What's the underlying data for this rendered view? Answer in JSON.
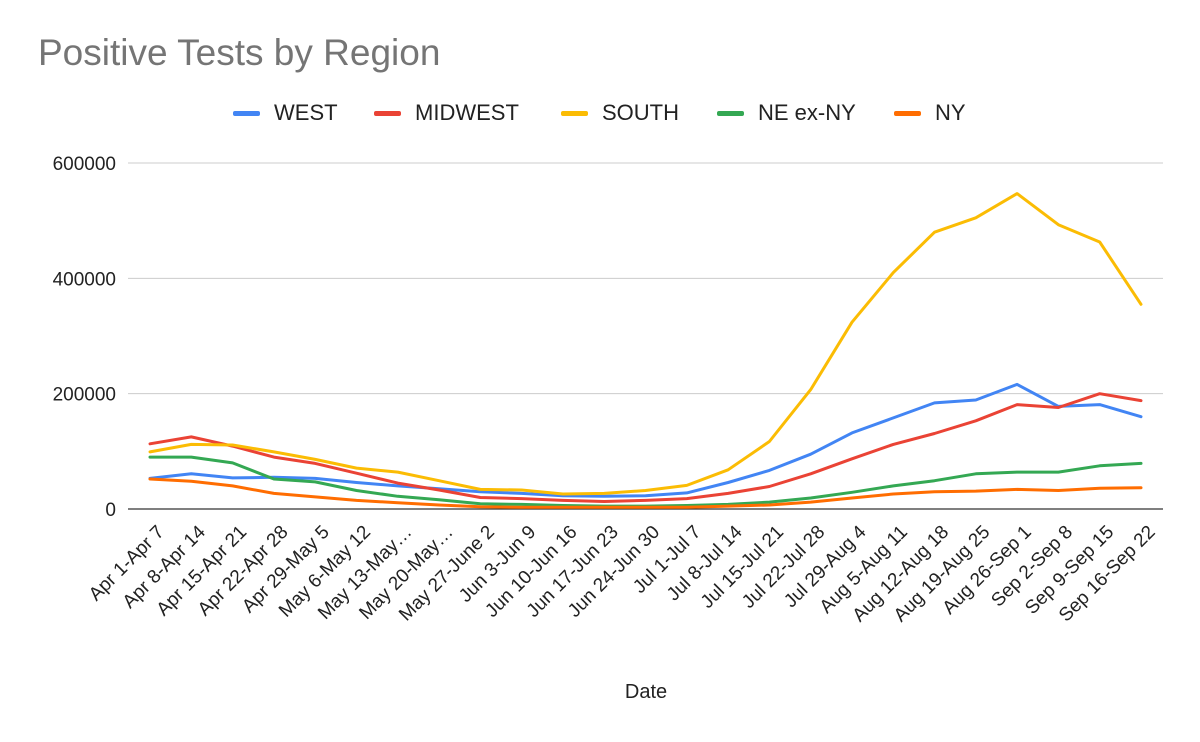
{
  "chart_data": {
    "type": "line",
    "title": "Positive Tests by Region",
    "xlabel": "Date",
    "ylabel": "",
    "ylim": [
      0,
      600000
    ],
    "yticks": [
      0,
      200000,
      400000,
      600000
    ],
    "ytick_labels": [
      "0",
      "200000",
      "400000",
      "600000"
    ],
    "grid": true,
    "legend_position": "top",
    "categories": [
      "Apr 1-Apr 7",
      "Apr 8-Apr 14",
      "Apr 15-Apr 21",
      "Apr 22-Apr 28",
      "Apr 29-May 5",
      "May 6-May 12",
      "May 13-May…",
      "May 20-May…",
      "May 27-June 2",
      "Jun 3-Jun 9",
      "Jun 10-Jun 16",
      "Jun 17-Jun 23",
      "Jun 24-Jun 30",
      "Jul 1-Jul 7",
      "Jul 8-Jul 14",
      "Jul 15-Jul 21",
      "Jul 22-Jul 28",
      "Jul 29-Aug 4",
      "Aug 5-Aug 11",
      "Aug 12-Aug 18",
      "Aug 19-Aug 25",
      "Aug 26-Sep 1",
      "Sep 2-Sep 8",
      "Sep 9-Sep 15",
      "Sep 16-Sep 22"
    ],
    "series": [
      {
        "name": "WEST",
        "color": "#4285f4",
        "values": [
          53000,
          61000,
          54000,
          55000,
          53000,
          46000,
          40000,
          35000,
          30000,
          27000,
          23000,
          22000,
          23000,
          28000,
          46000,
          67000,
          95000,
          132000,
          158000,
          184000,
          189000,
          216000,
          178000,
          181000,
          160000
        ]
      },
      {
        "name": "MIDWEST",
        "color": "#ea4335",
        "values": [
          113000,
          125000,
          109000,
          90000,
          79000,
          62000,
          45000,
          33000,
          20000,
          18000,
          15000,
          13000,
          15000,
          18000,
          27000,
          39000,
          61000,
          87000,
          112000,
          131000,
          153000,
          181000,
          176000,
          200000,
          188000
        ]
      },
      {
        "name": "SOUTH",
        "color": "#fbbc04",
        "values": [
          99000,
          112000,
          111000,
          99000,
          86000,
          71000,
          64000,
          49000,
          34000,
          33000,
          26000,
          27000,
          32000,
          41000,
          68000,
          117000,
          207000,
          324000,
          410000,
          480000,
          505000,
          547000,
          493000,
          463000,
          355000
        ]
      },
      {
        "name": "NE ex-NY",
        "color": "#34a853",
        "values": [
          90000,
          90000,
          80000,
          52000,
          47000,
          32000,
          22000,
          16000,
          9000,
          8000,
          6000,
          5000,
          5000,
          6000,
          8000,
          12000,
          19000,
          29000,
          40000,
          49000,
          61000,
          64000,
          64000,
          75000,
          79000
        ]
      },
      {
        "name": "NY",
        "color": "#ff6d01",
        "values": [
          52000,
          48000,
          40000,
          27000,
          21000,
          15000,
          11000,
          7000,
          4000,
          3000,
          3000,
          3000,
          3000,
          3000,
          5000,
          7000,
          12000,
          19000,
          26000,
          30000,
          31000,
          34000,
          32000,
          36000,
          37000
        ]
      }
    ]
  }
}
